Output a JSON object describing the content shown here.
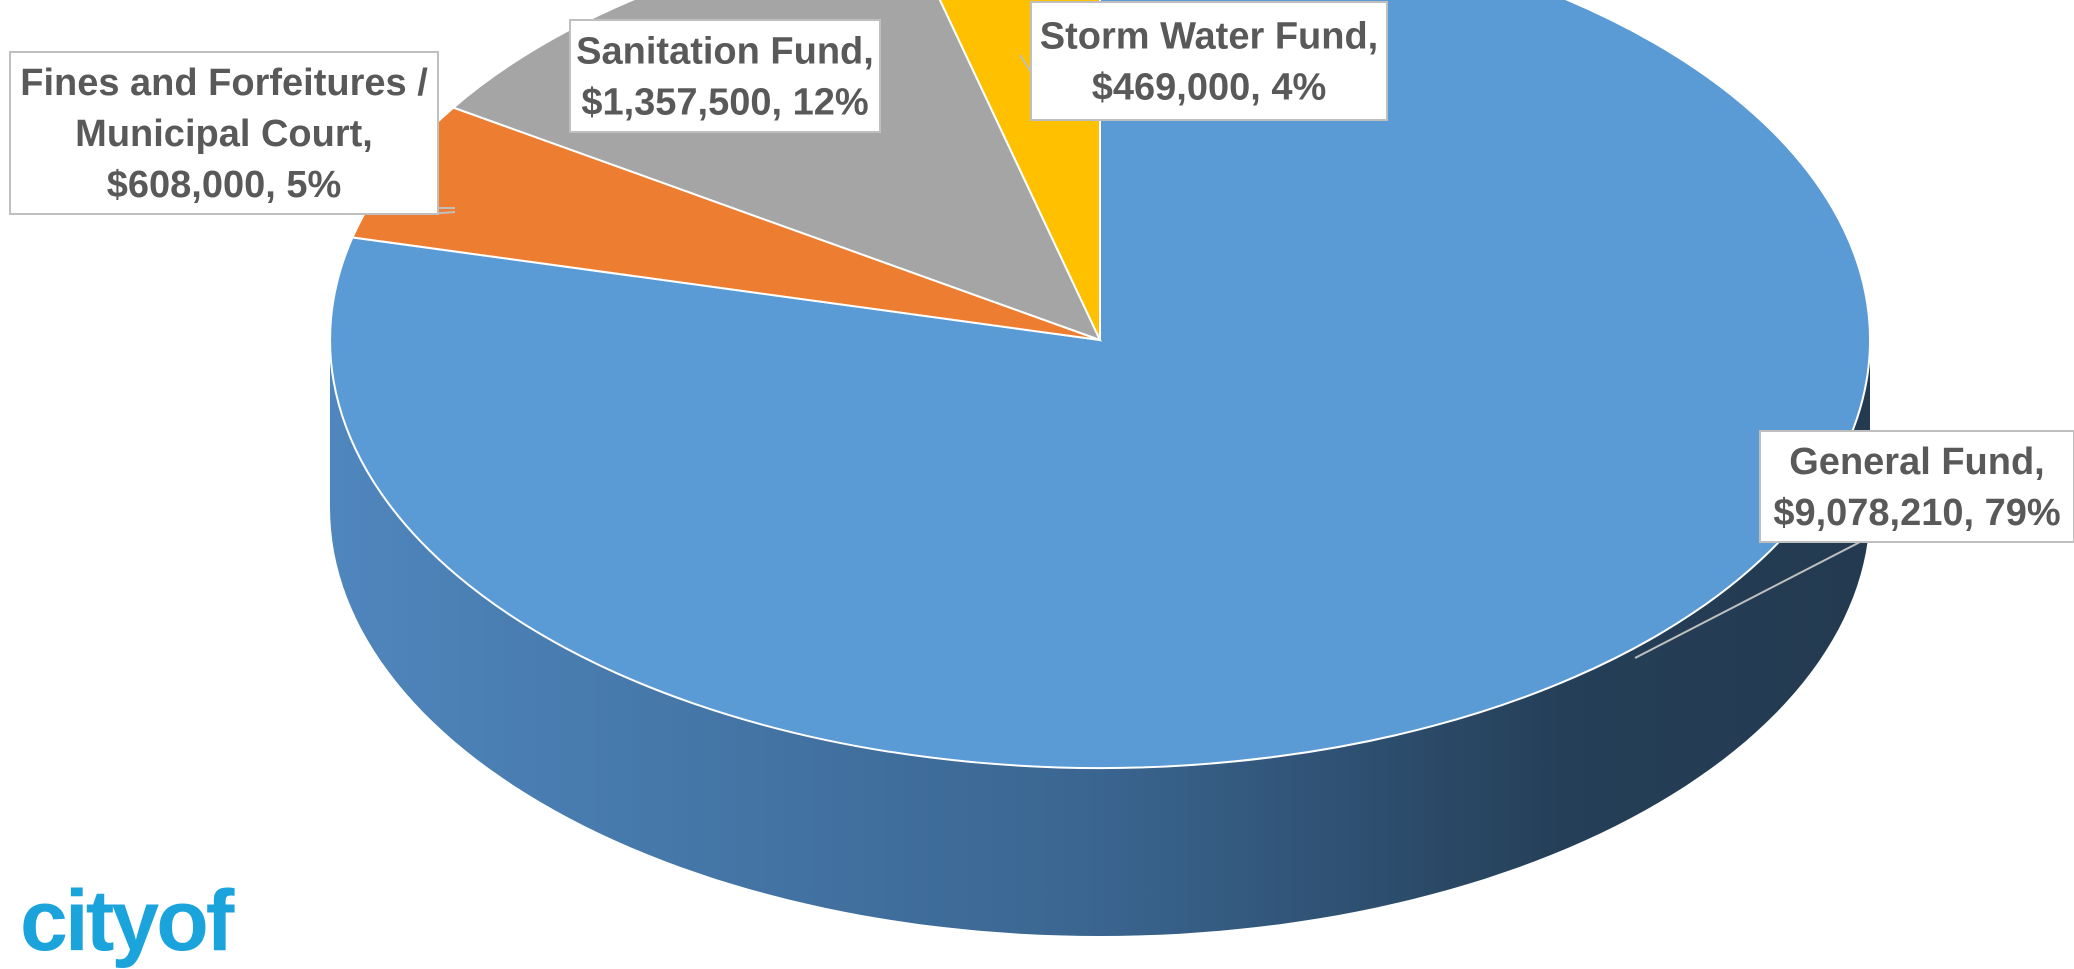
{
  "logo": {
    "text": "cityof",
    "color": "#1ba3dc"
  },
  "chart_data": {
    "type": "pie",
    "style": "3d",
    "start_angle": "12 o'clock, clockwise",
    "slices": [
      {
        "label": "General Fund",
        "value": 9078210,
        "value_text": "$9,078,210",
        "percent_text": "79%",
        "color": "#5b9bd5"
      },
      {
        "label": "Fines and Forfeitures  / Municipal Court",
        "value": 608000,
        "value_text": "$608,000",
        "percent_text": "5%",
        "color": "#ed7d31"
      },
      {
        "label": "Sanitation Fund",
        "value": 1357500,
        "value_text": "$1,357,500",
        "percent_text": "12%",
        "color": "#a5a5a5"
      },
      {
        "label": "Storm Water Fund",
        "value": 469000,
        "value_text": "$469,000",
        "percent_text": "4%",
        "color": "#ffc000"
      }
    ],
    "data_labels": [
      {
        "slice": 0,
        "lines": [
          "General Fund,",
          "$9,078,210, 79%"
        ]
      },
      {
        "slice": 1,
        "lines": [
          "Fines and Forfeitures  /",
          "Municipal Court,",
          "$608,000, 5%"
        ]
      },
      {
        "slice": 2,
        "lines": [
          "Sanitation Fund,",
          "$1,357,500, 12%"
        ]
      },
      {
        "slice": 3,
        "lines": [
          "Storm Water Fund,",
          "$469,000, 4%"
        ]
      }
    ]
  }
}
